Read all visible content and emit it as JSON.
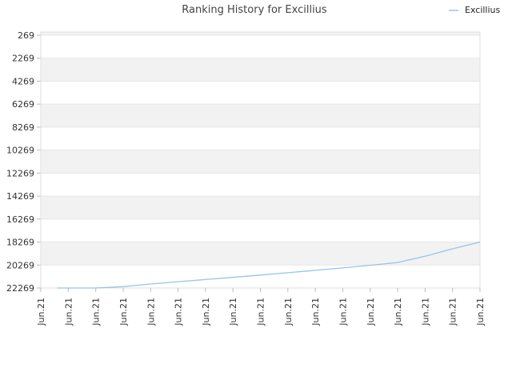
{
  "chart_data": {
    "type": "line",
    "title": "Ranking History for Excillius",
    "xlabel": "",
    "ylabel": "",
    "y_inverted": true,
    "ylim": [
      269,
      22269
    ],
    "y_ticks": [
      269,
      2269,
      4269,
      6269,
      8269,
      10269,
      12269,
      14269,
      16269,
      18269,
      20269,
      22269
    ],
    "x_tick_labels": [
      "Jun.21",
      "Jun.21",
      "Jun.21",
      "Jun.21",
      "Jun.21",
      "Jun.21",
      "Jun.21",
      "Jun.21",
      "Jun.21",
      "Jun.21",
      "Jun.21",
      "Jun.21",
      "Jun.21",
      "Jun.21",
      "Jun.21",
      "Jun.21",
      "Jun.21"
    ],
    "x_index_range": [
      0,
      16
    ],
    "grid": true,
    "band_color": "#f2f2f2",
    "grid_color": "#e6e6e6",
    "legend_position": "top-right",
    "series": [
      {
        "name": "Excillius",
        "color": "#99c3ea",
        "x": [
          0.6,
          1.0,
          2.0,
          3.0,
          4.0,
          5.0,
          6.0,
          7.0,
          8.0,
          9.0,
          10.0,
          11.0,
          12.0,
          13.0,
          14.0,
          15.0,
          16.0
        ],
        "values": [
          22269,
          22269,
          22269,
          22150,
          21920,
          21720,
          21530,
          21340,
          21140,
          20940,
          20730,
          20520,
          20290,
          20050,
          19500,
          18860,
          18270
        ]
      }
    ]
  }
}
